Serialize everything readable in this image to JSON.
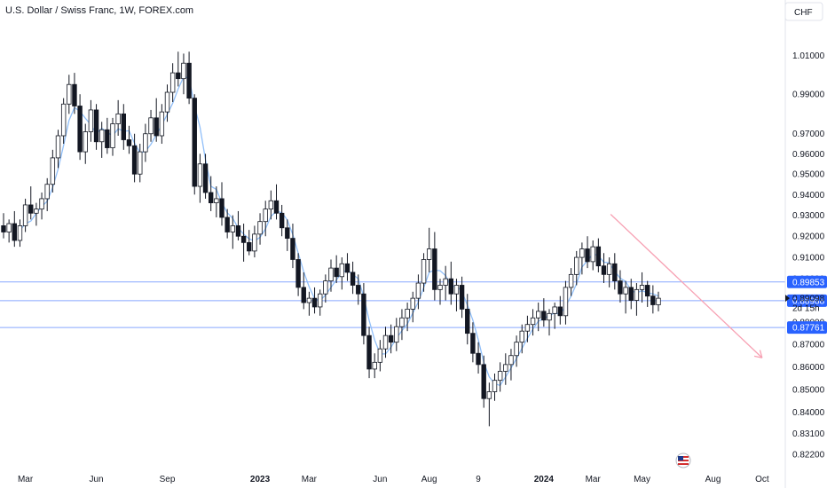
{
  "header": {
    "title": "U.S. Dollar / Swiss Franc, 1W, FOREX.com",
    "currency": "CHF",
    "countdown": "2d 15h"
  },
  "colors": {
    "candle_up": "#ffffff",
    "candle_down": "#131722",
    "wick": "#131722",
    "moving_average": "#90bff9",
    "level_lines": "#2962ff",
    "trend_arrow": "#f7a1b3",
    "label_bg": "#2962ff"
  },
  "chart_data": {
    "type": "candlestick",
    "title": "U.S. Dollar / Swiss Franc, 1W, FOREX.com",
    "ylim": [
      0.8205,
      1.0205
    ],
    "y_scale": "log",
    "y_ticks": [
      "1.01000",
      "0.99000",
      "0.97000",
      "0.96000",
      "0.95000",
      "0.94000",
      "0.93000",
      "0.92000",
      "0.91000",
      "0.90000",
      "0.89000",
      "0.88000",
      "0.87000",
      "0.86000",
      "0.85000",
      "0.84000",
      "0.83100",
      "0.82200"
    ],
    "y_tick_values": [
      1.01,
      0.99,
      0.97,
      0.96,
      0.95,
      0.94,
      0.93,
      0.92,
      0.91,
      0.9,
      0.89,
      0.88,
      0.87,
      0.86,
      0.85,
      0.84,
      0.831,
      0.822
    ],
    "x_ticks": [
      {
        "label": "Mar",
        "index": 4,
        "bold": false
      },
      {
        "label": "Jun",
        "index": 17,
        "bold": false
      },
      {
        "label": "Sep",
        "index": 30,
        "bold": false
      },
      {
        "label": "2023",
        "index": 47,
        "bold": true
      },
      {
        "label": "Mar",
        "index": 56,
        "bold": false
      },
      {
        "label": "Jun",
        "index": 69,
        "bold": false
      },
      {
        "label": "Aug",
        "index": 78,
        "bold": false
      },
      {
        "label": "9",
        "index": 87,
        "bold": false
      },
      {
        "label": "2024",
        "index": 99,
        "bold": true
      },
      {
        "label": "Mar",
        "index": 108,
        "bold": false
      },
      {
        "label": "May",
        "index": 117,
        "bold": false
      },
      {
        "label": "Aug",
        "index": 130,
        "bold": false
      },
      {
        "label": "Oct",
        "index": 139,
        "bold": false
      }
    ],
    "grid": false,
    "candles": [
      [
        0.925,
        0.931,
        0.919,
        0.922
      ],
      [
        0.922,
        0.928,
        0.917,
        0.926
      ],
      [
        0.926,
        0.932,
        0.915,
        0.918
      ],
      [
        0.918,
        0.928,
        0.915,
        0.925
      ],
      [
        0.925,
        0.938,
        0.922,
        0.935
      ],
      [
        0.935,
        0.944,
        0.928,
        0.931
      ],
      [
        0.931,
        0.936,
        0.925,
        0.933
      ],
      [
        0.933,
        0.941,
        0.928,
        0.938
      ],
      [
        0.938,
        0.948,
        0.932,
        0.945
      ],
      [
        0.945,
        0.962,
        0.941,
        0.958
      ],
      [
        0.958,
        0.972,
        0.953,
        0.969
      ],
      [
        0.969,
        0.988,
        0.965,
        0.985
      ],
      [
        0.985,
        1.0,
        0.98,
        0.995
      ],
      [
        0.995,
        1.001,
        0.98,
        0.984
      ],
      [
        0.984,
        0.99,
        0.957,
        0.961
      ],
      [
        0.961,
        0.975,
        0.955,
        0.971
      ],
      [
        0.971,
        0.987,
        0.966,
        0.982
      ],
      [
        0.982,
        0.985,
        0.962,
        0.966
      ],
      [
        0.966,
        0.976,
        0.958,
        0.972
      ],
      [
        0.972,
        0.978,
        0.96,
        0.963
      ],
      [
        0.963,
        0.978,
        0.959,
        0.975
      ],
      [
        0.975,
        0.987,
        0.969,
        0.98
      ],
      [
        0.98,
        0.985,
        0.962,
        0.967
      ],
      [
        0.967,
        0.974,
        0.96,
        0.964
      ],
      [
        0.964,
        0.97,
        0.946,
        0.95
      ],
      [
        0.95,
        0.965,
        0.946,
        0.961
      ],
      [
        0.961,
        0.975,
        0.956,
        0.97
      ],
      [
        0.97,
        0.982,
        0.966,
        0.978
      ],
      [
        0.978,
        0.988,
        0.966,
        0.969
      ],
      [
        0.969,
        0.985,
        0.965,
        0.981
      ],
      [
        0.981,
        0.995,
        0.976,
        0.991
      ],
      [
        0.991,
        1.006,
        0.986,
        1.001
      ],
      [
        1.001,
        1.012,
        0.994,
        0.998
      ],
      [
        0.998,
        1.011,
        0.99,
        1.006
      ],
      [
        1.006,
        1.012,
        0.985,
        0.988
      ],
      [
        0.988,
        0.99,
        0.94,
        0.944
      ],
      [
        0.944,
        0.96,
        0.936,
        0.955
      ],
      [
        0.955,
        0.96,
        0.938,
        0.941
      ],
      [
        0.941,
        0.949,
        0.932,
        0.936
      ],
      [
        0.936,
        0.944,
        0.929,
        0.938
      ],
      [
        0.938,
        0.946,
        0.925,
        0.929
      ],
      [
        0.929,
        0.933,
        0.919,
        0.922
      ],
      [
        0.922,
        0.93,
        0.914,
        0.925
      ],
      [
        0.925,
        0.932,
        0.918,
        0.92
      ],
      [
        0.92,
        0.926,
        0.908,
        0.917
      ],
      [
        0.917,
        0.923,
        0.911,
        0.913
      ],
      [
        0.913,
        0.925,
        0.91,
        0.921
      ],
      [
        0.921,
        0.931,
        0.916,
        0.927
      ],
      [
        0.927,
        0.937,
        0.92,
        0.933
      ],
      [
        0.933,
        0.942,
        0.928,
        0.937
      ],
      [
        0.937,
        0.945,
        0.928,
        0.931
      ],
      [
        0.931,
        0.935,
        0.92,
        0.924
      ],
      [
        0.924,
        0.928,
        0.913,
        0.919
      ],
      [
        0.919,
        0.926,
        0.905,
        0.909
      ],
      [
        0.909,
        0.912,
        0.892,
        0.896
      ],
      [
        0.896,
        0.903,
        0.886,
        0.889
      ],
      [
        0.889,
        0.894,
        0.883,
        0.891
      ],
      [
        0.891,
        0.896,
        0.884,
        0.887
      ],
      [
        0.887,
        0.895,
        0.883,
        0.893
      ],
      [
        0.893,
        0.902,
        0.889,
        0.899
      ],
      [
        0.899,
        0.909,
        0.894,
        0.905
      ],
      [
        0.905,
        0.911,
        0.898,
        0.901
      ],
      [
        0.901,
        0.91,
        0.895,
        0.907
      ],
      [
        0.907,
        0.912,
        0.899,
        0.903
      ],
      [
        0.903,
        0.908,
        0.893,
        0.897
      ],
      [
        0.897,
        0.902,
        0.888,
        0.893
      ],
      [
        0.893,
        0.898,
        0.87,
        0.874
      ],
      [
        0.874,
        0.878,
        0.855,
        0.859
      ],
      [
        0.859,
        0.866,
        0.855,
        0.862
      ],
      [
        0.862,
        0.872,
        0.858,
        0.868
      ],
      [
        0.868,
        0.878,
        0.864,
        0.874
      ],
      [
        0.874,
        0.879,
        0.866,
        0.871
      ],
      [
        0.871,
        0.882,
        0.867,
        0.878
      ],
      [
        0.878,
        0.886,
        0.872,
        0.882
      ],
      [
        0.882,
        0.889,
        0.876,
        0.886
      ],
      [
        0.886,
        0.894,
        0.88,
        0.891
      ],
      [
        0.891,
        0.902,
        0.886,
        0.898
      ],
      [
        0.898,
        0.912,
        0.894,
        0.909
      ],
      [
        0.909,
        0.924,
        0.903,
        0.914
      ],
      [
        0.914,
        0.922,
        0.89,
        0.895
      ],
      [
        0.895,
        0.9,
        0.888,
        0.897
      ],
      [
        0.897,
        0.906,
        0.89,
        0.9
      ],
      [
        0.9,
        0.908,
        0.888,
        0.893
      ],
      [
        0.893,
        0.9,
        0.885,
        0.897
      ],
      [
        0.897,
        0.901,
        0.882,
        0.886
      ],
      [
        0.886,
        0.893,
        0.87,
        0.875
      ],
      [
        0.875,
        0.88,
        0.862,
        0.866
      ],
      [
        0.866,
        0.871,
        0.857,
        0.861
      ],
      [
        0.861,
        0.865,
        0.842,
        0.846
      ],
      [
        0.846,
        0.853,
        0.834,
        0.849
      ],
      [
        0.849,
        0.857,
        0.845,
        0.854
      ],
      [
        0.854,
        0.862,
        0.849,
        0.858
      ],
      [
        0.858,
        0.866,
        0.852,
        0.861
      ],
      [
        0.861,
        0.868,
        0.854,
        0.865
      ],
      [
        0.865,
        0.874,
        0.86,
        0.871
      ],
      [
        0.871,
        0.879,
        0.866,
        0.876
      ],
      [
        0.876,
        0.883,
        0.871,
        0.879
      ],
      [
        0.879,
        0.886,
        0.874,
        0.882
      ],
      [
        0.882,
        0.889,
        0.876,
        0.885
      ],
      [
        0.885,
        0.891,
        0.878,
        0.881
      ],
      [
        0.881,
        0.886,
        0.874,
        0.884
      ],
      [
        0.884,
        0.889,
        0.877,
        0.887
      ],
      [
        0.887,
        0.892,
        0.879,
        0.883
      ],
      [
        0.883,
        0.899,
        0.879,
        0.896
      ],
      [
        0.896,
        0.905,
        0.892,
        0.902
      ],
      [
        0.902,
        0.913,
        0.897,
        0.91
      ],
      [
        0.91,
        0.917,
        0.902,
        0.914
      ],
      [
        0.914,
        0.92,
        0.905,
        0.908
      ],
      [
        0.908,
        0.918,
        0.904,
        0.915
      ],
      [
        0.915,
        0.919,
        0.903,
        0.906
      ],
      [
        0.906,
        0.912,
        0.898,
        0.902
      ],
      [
        0.902,
        0.91,
        0.896,
        0.907
      ],
      [
        0.907,
        0.912,
        0.895,
        0.899
      ],
      [
        0.899,
        0.904,
        0.889,
        0.893
      ],
      [
        0.893,
        0.899,
        0.884,
        0.896
      ],
      [
        0.896,
        0.9,
        0.886,
        0.89
      ],
      [
        0.89,
        0.898,
        0.883,
        0.895
      ],
      [
        0.895,
        0.903,
        0.889,
        0.897
      ],
      [
        0.897,
        0.899,
        0.887,
        0.892
      ],
      [
        0.892,
        0.897,
        0.884,
        0.888
      ],
      [
        0.888,
        0.894,
        0.885,
        0.891
      ]
    ],
    "moving_average": {
      "name": "",
      "values_from_index": 3
    },
    "horizontal_levels": [
      {
        "label": "0.89853",
        "value": 0.89853
      },
      {
        "label": "0.88988",
        "value": 0.88988
      },
      {
        "label": "0.87761",
        "value": 0.87761
      }
    ],
    "current_price": {
      "label": "0.89098",
      "value": 0.89098,
      "countdown": "2d 15h"
    },
    "trend_arrow": {
      "from": {
        "index": 121,
        "value": 0.9305
      },
      "to": {
        "index": 139,
        "value": 0.864
      }
    }
  }
}
